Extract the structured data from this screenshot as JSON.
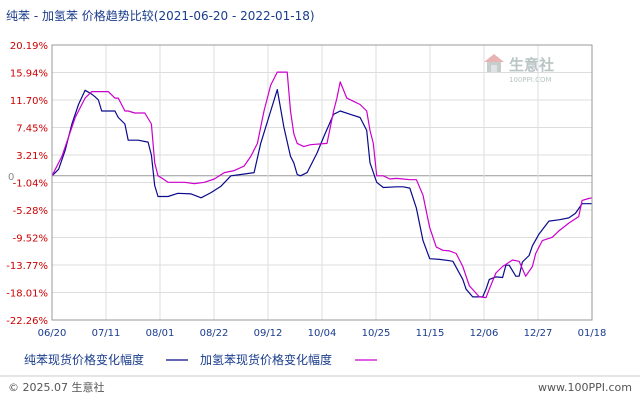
{
  "chart_data": {
    "type": "line",
    "title": "纯苯 - 加氢苯 价格趋势比较(2021-06-20 - 2022-01-18)",
    "x_ticks": [
      "06/20",
      "07/11",
      "08/01",
      "08/22",
      "09/12",
      "10/04",
      "10/25",
      "11/15",
      "12/06",
      "12/27",
      "01/18"
    ],
    "y_ticks": [
      "20.19%",
      "15.94%",
      "11.70%",
      "7.45%",
      "3.21%",
      "-1.04%",
      "-5.28%",
      "-9.52%",
      "-13.77%",
      "-18.01%",
      "-22.26%"
    ],
    "y_zero_label": "0",
    "ylim": [
      -22.26,
      20.19
    ],
    "grid": true,
    "legend_position": "bottom",
    "series": [
      {
        "name": "纯苯现货价格变化幅度",
        "color": "#0a0a8c",
        "points": [
          [
            0,
            0
          ],
          [
            2,
            1
          ],
          [
            4,
            4
          ],
          [
            6,
            8
          ],
          [
            8,
            11
          ],
          [
            10,
            13.2
          ],
          [
            12,
            12.6
          ],
          [
            13,
            12.2
          ],
          [
            14,
            11.7
          ],
          [
            15,
            10
          ],
          [
            17,
            10
          ],
          [
            19,
            10
          ],
          [
            20,
            9
          ],
          [
            22,
            8
          ],
          [
            23,
            5.5
          ],
          [
            26,
            5.5
          ],
          [
            29,
            5.2
          ],
          [
            30,
            3.2
          ],
          [
            31,
            -1.5
          ],
          [
            32,
            -3.2
          ],
          [
            35,
            -3.2
          ],
          [
            38,
            -2.7
          ],
          [
            42,
            -2.8
          ],
          [
            45,
            -3.4
          ],
          [
            48,
            -2.6
          ],
          [
            51,
            -1.6
          ],
          [
            54,
            0
          ],
          [
            57,
            0.2
          ],
          [
            61,
            0.5
          ],
          [
            63,
            5
          ],
          [
            66,
            10
          ],
          [
            68,
            13.3
          ],
          [
            70,
            7.5
          ],
          [
            72,
            3
          ],
          [
            73,
            2
          ],
          [
            74,
            0.2
          ],
          [
            75,
            0
          ],
          [
            77,
            0.5
          ],
          [
            80,
            3.5
          ],
          [
            82,
            6
          ],
          [
            85,
            9.5
          ],
          [
            87,
            10
          ],
          [
            90,
            9.5
          ],
          [
            93,
            9
          ],
          [
            95,
            7
          ],
          [
            96,
            2
          ],
          [
            98,
            -1
          ],
          [
            100,
            -1.8
          ],
          [
            104,
            -1.7
          ],
          [
            106,
            -1.7
          ],
          [
            108,
            -1.9
          ],
          [
            110,
            -5
          ],
          [
            112,
            -10
          ],
          [
            114,
            -12.8
          ],
          [
            117,
            -12.9
          ],
          [
            120,
            -13.1
          ],
          [
            121,
            -13.2
          ],
          [
            124,
            -16
          ],
          [
            125,
            -17.5
          ],
          [
            127,
            -18.7
          ],
          [
            130,
            -18.7
          ],
          [
            131,
            -17.5
          ],
          [
            132,
            -16
          ],
          [
            134,
            -15.6
          ],
          [
            136,
            -15.7
          ],
          [
            137,
            -13.8
          ],
          [
            138,
            -13.8
          ],
          [
            140,
            -15.5
          ],
          [
            141,
            -15.5
          ],
          [
            142,
            -13.3
          ],
          [
            144,
            -12.3
          ],
          [
            145,
            -10.8
          ],
          [
            147,
            -9
          ],
          [
            150,
            -7
          ],
          [
            153,
            -6.8
          ],
          [
            156,
            -6.5
          ],
          [
            158,
            -5.8
          ],
          [
            160,
            -4.3
          ],
          [
            162,
            -4.3
          ],
          [
            163,
            -4.3
          ]
        ]
      },
      {
        "name": "加氢苯现货价格变化幅度",
        "color": "#cc00cc",
        "points": [
          [
            0,
            0
          ],
          [
            3,
            3
          ],
          [
            5,
            6
          ],
          [
            7,
            9
          ],
          [
            9,
            11
          ],
          [
            10,
            12
          ],
          [
            12,
            13
          ],
          [
            14,
            13
          ],
          [
            17,
            13
          ],
          [
            19,
            12
          ],
          [
            20,
            12
          ],
          [
            22,
            10
          ],
          [
            23,
            10
          ],
          [
            25,
            9.7
          ],
          [
            28,
            9.7
          ],
          [
            30,
            8
          ],
          [
            31,
            2
          ],
          [
            32,
            0
          ],
          [
            33,
            -0.3
          ],
          [
            35,
            -1
          ],
          [
            37,
            -1
          ],
          [
            40,
            -1
          ],
          [
            43,
            -1.2
          ],
          [
            46,
            -1
          ],
          [
            49,
            -0.5
          ],
          [
            52,
            0.5
          ],
          [
            55,
            0.8
          ],
          [
            58,
            1.5
          ],
          [
            60,
            3
          ],
          [
            62,
            5
          ],
          [
            64,
            10
          ],
          [
            66,
            14
          ],
          [
            68,
            16
          ],
          [
            69,
            16
          ],
          [
            71,
            16
          ],
          [
            72,
            10
          ],
          [
            73,
            6.5
          ],
          [
            74,
            5
          ],
          [
            76,
            4.5
          ],
          [
            78,
            4.8
          ],
          [
            83,
            5
          ],
          [
            85,
            10
          ],
          [
            86,
            12
          ],
          [
            87,
            14.5
          ],
          [
            89,
            12
          ],
          [
            91,
            11.5
          ],
          [
            93,
            11
          ],
          [
            95,
            10
          ],
          [
            96,
            7
          ],
          [
            97,
            5
          ],
          [
            98,
            0
          ],
          [
            100,
            0
          ],
          [
            102,
            -0.5
          ],
          [
            104,
            -0.4
          ],
          [
            106,
            -0.5
          ],
          [
            108,
            -0.6
          ],
          [
            110,
            -0.6
          ],
          [
            112,
            -3
          ],
          [
            114,
            -8
          ],
          [
            116,
            -11
          ],
          [
            118,
            -11.5
          ],
          [
            120,
            -11.6
          ],
          [
            122,
            -12
          ],
          [
            124,
            -14
          ],
          [
            126,
            -17
          ],
          [
            129,
            -18.7
          ],
          [
            131,
            -18.8
          ],
          [
            132,
            -17.5
          ],
          [
            134,
            -15
          ],
          [
            136,
            -14
          ],
          [
            139,
            -13
          ],
          [
            141,
            -13.2
          ],
          [
            143,
            -15.5
          ],
          [
            145,
            -14
          ],
          [
            146,
            -12
          ],
          [
            148,
            -10
          ],
          [
            151,
            -9.5
          ],
          [
            153,
            -8.5
          ],
          [
            156,
            -7.3
          ],
          [
            159,
            -6.3
          ],
          [
            160,
            -3.8
          ],
          [
            162,
            -3.5
          ],
          [
            163,
            -3.4
          ]
        ]
      }
    ]
  },
  "watermark": {
    "logo_text": "生意社",
    "url_text": "100PPI.COM",
    "icon": "house-logo-icon"
  },
  "footer": {
    "copyright": "© 2025.07 生意社",
    "site": "www.100PPI.com"
  },
  "colors": {
    "grid": "#dddddd",
    "frame": "#999999",
    "y_label": "#cc0000",
    "x_label": "#1a3c8c"
  }
}
